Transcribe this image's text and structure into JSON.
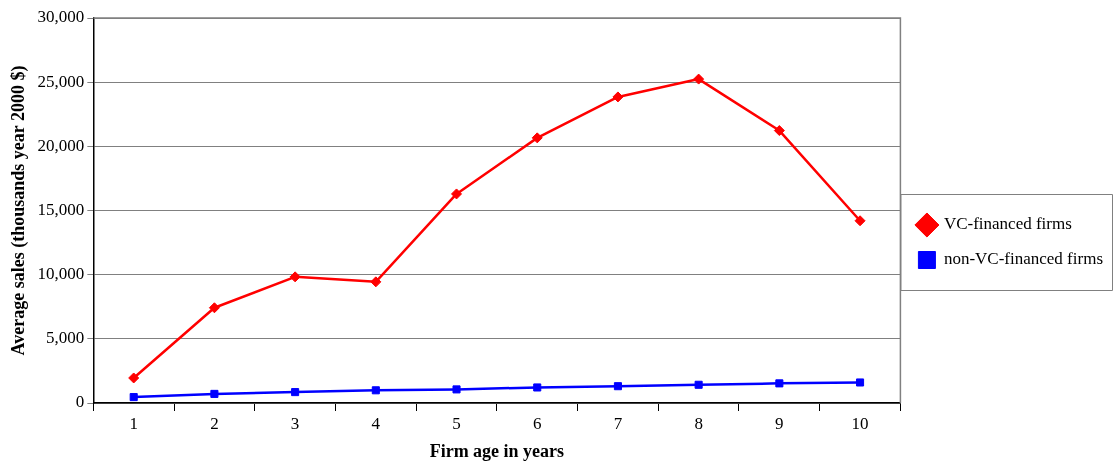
{
  "chart_data": {
    "type": "line",
    "xlabel": "Firm age in years",
    "ylabel": "Average sales (thousands year 2000 $)",
    "categories": [
      "1",
      "2",
      "3",
      "4",
      "5",
      "6",
      "7",
      "8",
      "9",
      "10"
    ],
    "series": [
      {
        "name": "VC-financed firms",
        "color": "#ff0000",
        "marker": "diamond",
        "values": [
          1950,
          7420,
          9830,
          9440,
          16290,
          20660,
          23850,
          25240,
          21230,
          14200
        ]
      },
      {
        "name": "non-VC-financed firms",
        "color": "#0000ff",
        "marker": "square",
        "values": [
          460,
          710,
          850,
          990,
          1060,
          1210,
          1310,
          1420,
          1530,
          1600
        ]
      }
    ],
    "ylim": [
      0,
      30000
    ],
    "yticks": [
      0,
      {
        "value": 5000,
        "label": "5,000"
      },
      {
        "value": 10000,
        "label": "10,000"
      },
      {
        "value": 15000,
        "label": "15,000"
      },
      {
        "value": 20000,
        "label": "20,000"
      },
      {
        "value": 25000,
        "label": "25,000"
      },
      {
        "value": 30000,
        "label": "30,000"
      }
    ],
    "grid": "y",
    "legend": "right",
    "line_style": "solid"
  }
}
